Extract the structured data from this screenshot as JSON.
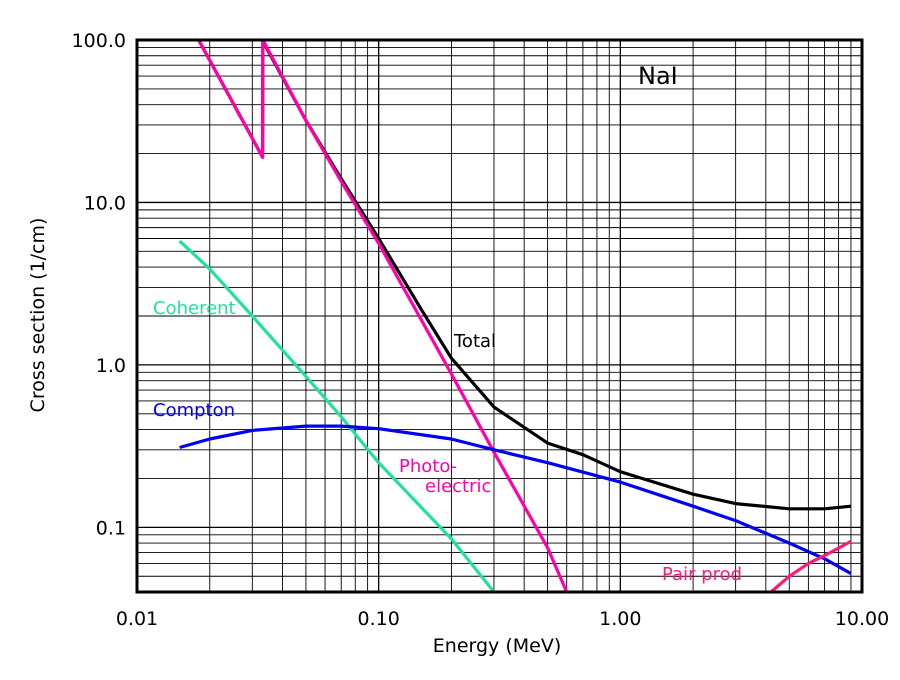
{
  "chart_data": {
    "type": "line",
    "title": "",
    "annotation": "NaI",
    "xlabel": "Energy (MeV)",
    "ylabel": "Cross section (1/cm)",
    "xscale": "log",
    "yscale": "log",
    "xlim": [
      0.01,
      10.0
    ],
    "ylim": [
      0.04,
      100.0
    ],
    "grid": true,
    "x_tick_labels": [
      {
        "value": 0.01,
        "label": "0.01"
      },
      {
        "value": 0.1,
        "label": "0.10"
      },
      {
        "value": 1.0,
        "label": "1.00"
      },
      {
        "value": 10.0,
        "label": "10.00"
      }
    ],
    "y_tick_labels": [
      {
        "value": 0.1,
        "label": "0.1"
      },
      {
        "value": 1.0,
        "label": "1.0"
      },
      {
        "value": 10.0,
        "label": "10.0"
      },
      {
        "value": 100.0,
        "label": "100.0"
      }
    ],
    "series": [
      {
        "name": "Total",
        "color": "#000000",
        "points": [
          [
            0.018,
            100
          ],
          [
            0.0331,
            19
          ],
          [
            0.0332,
            98
          ],
          [
            0.05,
            32
          ],
          [
            0.07,
            14
          ],
          [
            0.1,
            6
          ],
          [
            0.15,
            2.2
          ],
          [
            0.2,
            1.1
          ],
          [
            0.3,
            0.55
          ],
          [
            0.5,
            0.33
          ],
          [
            0.7,
            0.28
          ],
          [
            1.0,
            0.22
          ],
          [
            2.0,
            0.16
          ],
          [
            3.0,
            0.14
          ],
          [
            5.0,
            0.13
          ],
          [
            7.0,
            0.13
          ],
          [
            9.0,
            0.135
          ]
        ]
      },
      {
        "name": "Photo- electric",
        "color": "#ff00aa",
        "points": [
          [
            0.018,
            100
          ],
          [
            0.0331,
            19
          ],
          [
            0.0332,
            100
          ],
          [
            0.05,
            32
          ],
          [
            0.07,
            13.5
          ],
          [
            0.1,
            5.6
          ],
          [
            0.2,
            0.88
          ],
          [
            0.3,
            0.29
          ],
          [
            0.5,
            0.075
          ],
          [
            0.6,
            0.04
          ]
        ]
      },
      {
        "name": "Coherent",
        "color": "#22e0a0",
        "points": [
          [
            0.015,
            5.8
          ],
          [
            0.02,
            3.9
          ],
          [
            0.03,
            2.0
          ],
          [
            0.05,
            0.85
          ],
          [
            0.07,
            0.48
          ],
          [
            0.1,
            0.25
          ],
          [
            0.2,
            0.085
          ],
          [
            0.3,
            0.04
          ]
        ]
      },
      {
        "name": "Compton",
        "color": "#0000ee",
        "points": [
          [
            0.015,
            0.31
          ],
          [
            0.02,
            0.35
          ],
          [
            0.03,
            0.395
          ],
          [
            0.05,
            0.42
          ],
          [
            0.07,
            0.42
          ],
          [
            0.1,
            0.405
          ],
          [
            0.2,
            0.35
          ],
          [
            0.3,
            0.3
          ],
          [
            0.5,
            0.25
          ],
          [
            1.0,
            0.19
          ],
          [
            2.0,
            0.135
          ],
          [
            3.0,
            0.11
          ],
          [
            5.0,
            0.08
          ],
          [
            7.0,
            0.064
          ],
          [
            9.0,
            0.052
          ]
        ]
      },
      {
        "name": "Pair prod",
        "color": "#ff1a75",
        "points": [
          [
            4.2,
            0.04
          ],
          [
            5.0,
            0.05
          ],
          [
            6.0,
            0.06
          ],
          [
            7.0,
            0.067
          ],
          [
            9.0,
            0.082
          ]
        ]
      }
    ]
  }
}
